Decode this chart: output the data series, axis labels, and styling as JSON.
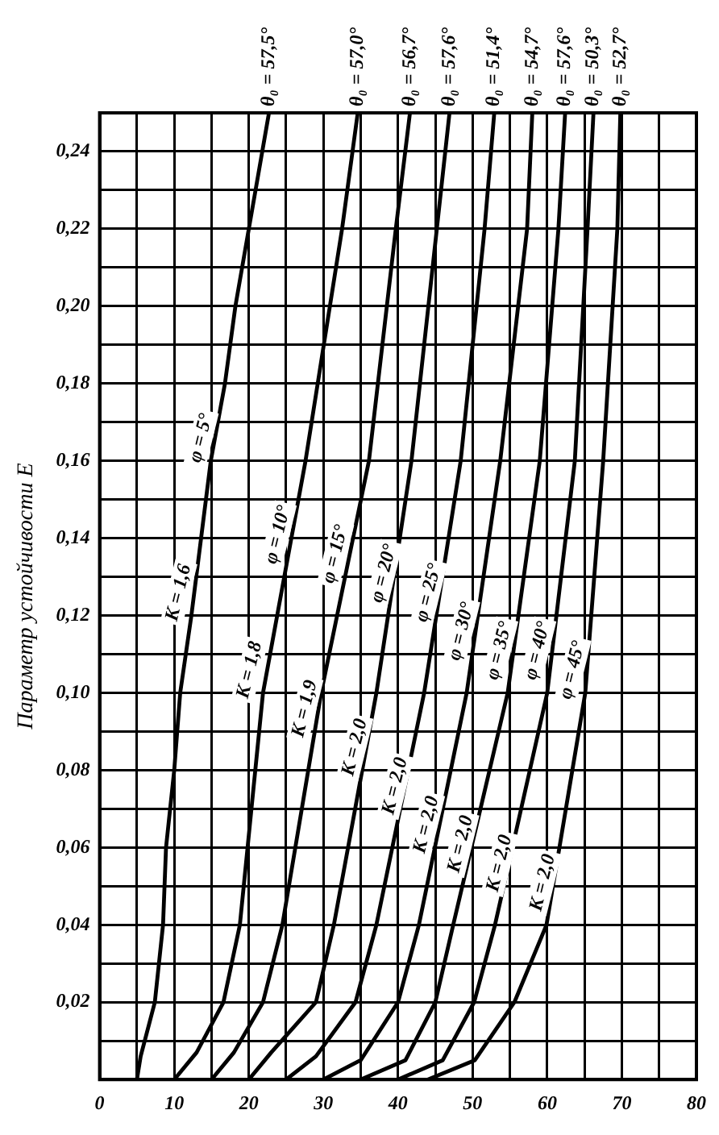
{
  "chart_data": {
    "type": "line",
    "ylabel": "Параметр устойчивости E",
    "xlim": [
      0,
      80
    ],
    "ylim": [
      0,
      0.25
    ],
    "xticks": [
      0,
      {
        "value": 5,
        "label": null
      },
      10,
      {
        "value": 15,
        "label": null
      },
      20,
      {
        "value": 25,
        "label": null
      },
      30,
      {
        "value": 35,
        "label": null
      },
      40,
      {
        "value": 45,
        "label": null
      },
      50,
      {
        "value": 55,
        "label": null
      },
      60,
      {
        "value": 65,
        "label": null
      },
      70,
      {
        "value": 75,
        "label": null
      },
      80
    ],
    "yticks": [
      {
        "value": 0,
        "label": null
      },
      {
        "value": 0.01,
        "label": null
      },
      {
        "value": 0.02,
        "label": "0,02"
      },
      {
        "value": 0.03,
        "label": null
      },
      {
        "value": 0.04,
        "label": "0,04"
      },
      {
        "value": 0.05,
        "label": null
      },
      {
        "value": 0.06,
        "label": "0,06"
      },
      {
        "value": 0.07,
        "label": null
      },
      {
        "value": 0.08,
        "label": "0,08"
      },
      {
        "value": 0.09,
        "label": null
      },
      {
        "value": 0.1,
        "label": "0,10"
      },
      {
        "value": 0.11,
        "label": null
      },
      {
        "value": 0.12,
        "label": "0,12"
      },
      {
        "value": 0.13,
        "label": null
      },
      {
        "value": 0.14,
        "label": "0,14"
      },
      {
        "value": 0.15,
        "label": null
      },
      {
        "value": 0.16,
        "label": "0,16"
      },
      {
        "value": 0.17,
        "label": null
      },
      {
        "value": 0.18,
        "label": "0,18"
      },
      {
        "value": 0.19,
        "label": null
      },
      {
        "value": 0.2,
        "label": "0,20"
      },
      {
        "value": 0.21,
        "label": null
      },
      {
        "value": 0.22,
        "label": "0,22"
      },
      {
        "value": 0.23,
        "label": null
      },
      {
        "value": 0.24,
        "label": "0,24"
      }
    ],
    "grid": true,
    "legend": false,
    "marker": "none",
    "line_style": "solid",
    "series": [
      {
        "color": "#000000",
        "x": [
          5,
          5.5,
          7.4,
          8.5,
          8.9,
          10,
          10.8,
          12.3,
          13.6,
          14.9,
          16.8,
          18.2,
          20,
          22.7
        ],
        "values": [
          0,
          0.006,
          0.02,
          0.04,
          0.06,
          0.08,
          0.1,
          0.12,
          0.14,
          0.16,
          0.18,
          0.2,
          0.22,
          0.25
        ]
      },
      {
        "color": "#000000",
        "x": [
          10,
          13,
          16.6,
          18.8,
          21.9,
          27.6,
          32.5,
          34.6
        ],
        "values": [
          0,
          0.007,
          0.02,
          0.04,
          0.1,
          0.16,
          0.22,
          0.25
        ]
      },
      {
        "color": "#000000",
        "x": [
          15,
          18,
          21.9,
          24.5,
          29.7,
          36.1,
          39.7,
          41.6
        ],
        "values": [
          0,
          0.007,
          0.02,
          0.04,
          0.1,
          0.16,
          0.22,
          0.25
        ]
      },
      {
        "color": "#000000",
        "x": [
          20,
          23,
          29,
          31.4,
          37.1,
          41.8,
          45.2,
          46.9
        ],
        "values": [
          0,
          0.007,
          0.02,
          0.04,
          0.1,
          0.16,
          0.22,
          0.25
        ]
      },
      {
        "color": "#000000",
        "x": [
          25,
          29,
          34.3,
          37.1,
          43.5,
          48.4,
          51.6,
          52.9
        ],
        "values": [
          0,
          0.006,
          0.02,
          0.04,
          0.1,
          0.16,
          0.22,
          0.25
        ]
      },
      {
        "color": "#000000",
        "x": [
          30,
          35,
          40,
          42.8,
          49.2,
          53.7,
          57.3,
          58
        ],
        "values": [
          0,
          0.005,
          0.02,
          0.04,
          0.1,
          0.16,
          0.22,
          0.25
        ]
      },
      {
        "color": "#000000",
        "x": [
          35,
          41,
          45,
          47.4,
          54.7,
          59,
          61.5,
          62.4
        ],
        "values": [
          0,
          0.005,
          0.02,
          0.04,
          0.1,
          0.16,
          0.22,
          0.25
        ]
      },
      {
        "color": "#000000",
        "x": [
          40,
          46,
          50.2,
          53,
          60,
          63.7,
          65.4,
          66.2
        ],
        "values": [
          0,
          0.005,
          0.02,
          0.04,
          0.1,
          0.16,
          0.22,
          0.25
        ]
      },
      {
        "color": "#000000",
        "x": [
          44,
          50.3,
          55.6,
          59.9,
          65.1,
          67.5,
          69.4,
          69.8
        ],
        "values": [
          0,
          0.005,
          0.02,
          0.04,
          0.1,
          0.16,
          0.22,
          0.25
        ]
      }
    ],
    "annotations": [
      {
        "text": "θ₀ = 57,5°",
        "x": 22.7,
        "y": 0.25
      },
      {
        "text": "θ₀ = 57,0°",
        "x": 34.6,
        "y": 0.25
      },
      {
        "text": "θ₀ = 56,7°",
        "x": 41.6,
        "y": 0.25
      },
      {
        "text": "θ₀ = 57,6°",
        "x": 46.9,
        "y": 0.25
      },
      {
        "text": "θ₀ = 51,4°",
        "x": 52.9,
        "y": 0.25
      },
      {
        "text": "θ₀ = 54,7°",
        "x": 58,
        "y": 0.25
      },
      {
        "text": "θ₀ = 57,6°",
        "x": 62.4,
        "y": 0.25
      },
      {
        "text": "θ₀ = 50,3°",
        "x": 66.2,
        "y": 0.25
      },
      {
        "text": "θ₀ = 52,7°",
        "x": 69.8,
        "y": 0.25
      },
      {
        "text": "φ = 5°",
        "x": 15.5,
        "y": 0.165
      },
      {
        "text": "φ = 10°",
        "x": 25.8,
        "y": 0.14
      },
      {
        "text": "φ = 15°",
        "x": 33.5,
        "y": 0.135
      },
      {
        "text": "φ = 20°",
        "x": 40,
        "y": 0.13
      },
      {
        "text": "φ = 25°",
        "x": 46,
        "y": 0.125
      },
      {
        "text": "φ = 30°",
        "x": 50.4,
        "y": 0.115
      },
      {
        "text": "φ = 35°",
        "x": 55.5,
        "y": 0.11
      },
      {
        "text": "φ = 40°",
        "x": 60.6,
        "y": 0.11
      },
      {
        "text": "φ = 45°",
        "x": 65.3,
        "y": 0.105
      },
      {
        "text": "K = 1,6",
        "x": 12.5,
        "y": 0.125
      },
      {
        "text": "K = 1,8",
        "x": 22,
        "y": 0.105
      },
      {
        "text": "K = 1,9",
        "x": 29.4,
        "y": 0.095
      },
      {
        "text": "K = 2,0",
        "x": 36.1,
        "y": 0.085
      },
      {
        "text": "K = 2,0",
        "x": 41.5,
        "y": 0.075
      },
      {
        "text": "K = 2,0",
        "x": 45.7,
        "y": 0.065
      },
      {
        "text": "K = 2,0",
        "x": 50.3,
        "y": 0.06
      },
      {
        "text": "K = 2,0",
        "x": 55.5,
        "y": 0.055
      },
      {
        "text": "K = 2,0",
        "x": 61.3,
        "y": 0.05
      }
    ]
  }
}
